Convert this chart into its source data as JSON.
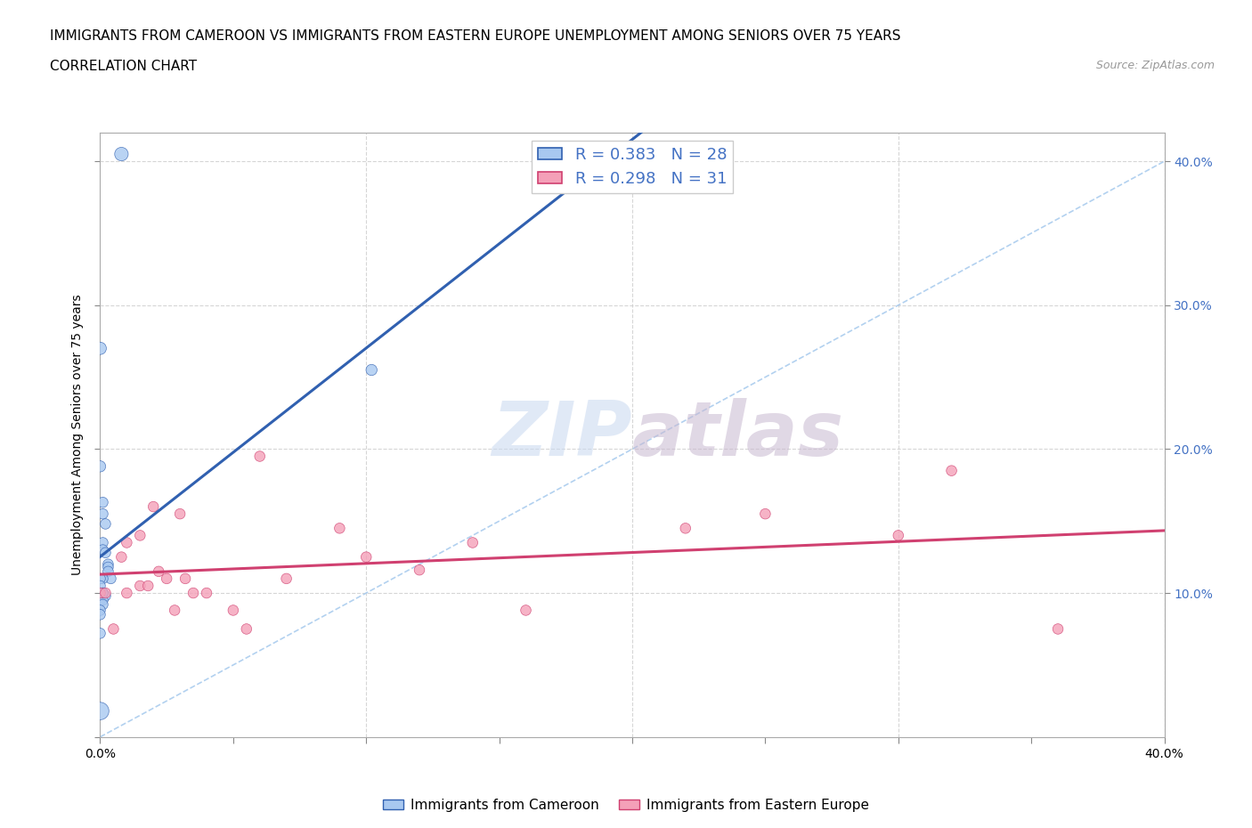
{
  "title_line1": "IMMIGRANTS FROM CAMEROON VS IMMIGRANTS FROM EASTERN EUROPE UNEMPLOYMENT AMONG SENIORS OVER 75 YEARS",
  "title_line2": "CORRELATION CHART",
  "source_text": "Source: ZipAtlas.com",
  "watermark": "ZIPatlas",
  "ylabel": "Unemployment Among Seniors over 75 years",
  "xlim": [
    0.0,
    0.4
  ],
  "ylim": [
    0.0,
    0.42
  ],
  "series": [
    {
      "label": "Immigrants from Cameroon",
      "color": "#a8c8f0",
      "line_color": "#3060b0",
      "R": 0.383,
      "N": 28,
      "x": [
        0.008,
        0.0,
        0.0,
        0.001,
        0.001,
        0.002,
        0.001,
        0.001,
        0.002,
        0.003,
        0.003,
        0.003,
        0.004,
        0.001,
        0.0,
        0.0,
        0.001,
        0.001,
        0.002,
        0.0,
        0.001,
        0.001,
        0.0,
        0.0,
        0.0,
        0.102,
        0.001,
        0.0
      ],
      "y": [
        0.405,
        0.27,
        0.188,
        0.163,
        0.155,
        0.148,
        0.135,
        0.13,
        0.128,
        0.12,
        0.118,
        0.115,
        0.11,
        0.11,
        0.11,
        0.105,
        0.1,
        0.1,
        0.098,
        0.095,
        0.095,
        0.092,
        0.088,
        0.085,
        0.072,
        0.255,
        0.1,
        0.018
      ],
      "sizes": [
        120,
        100,
        80,
        70,
        70,
        70,
        70,
        70,
        70,
        70,
        70,
        70,
        70,
        70,
        70,
        70,
        70,
        70,
        70,
        70,
        70,
        70,
        70,
        70,
        70,
        80,
        70,
        200
      ]
    },
    {
      "label": "Immigrants from Eastern Europe",
      "color": "#f4a0b8",
      "line_color": "#d04070",
      "R": 0.298,
      "N": 31,
      "x": [
        0.0,
        0.002,
        0.005,
        0.008,
        0.01,
        0.01,
        0.015,
        0.015,
        0.018,
        0.02,
        0.022,
        0.025,
        0.028,
        0.03,
        0.032,
        0.035,
        0.04,
        0.05,
        0.055,
        0.06,
        0.07,
        0.09,
        0.1,
        0.12,
        0.14,
        0.16,
        0.22,
        0.25,
        0.3,
        0.32,
        0.36
      ],
      "y": [
        0.1,
        0.1,
        0.075,
        0.125,
        0.135,
        0.1,
        0.14,
        0.105,
        0.105,
        0.16,
        0.115,
        0.11,
        0.088,
        0.155,
        0.11,
        0.1,
        0.1,
        0.088,
        0.075,
        0.195,
        0.11,
        0.145,
        0.125,
        0.116,
        0.135,
        0.088,
        0.145,
        0.155,
        0.14,
        0.185,
        0.075
      ],
      "sizes": [
        70,
        70,
        70,
        70,
        70,
        70,
        70,
        70,
        70,
        70,
        70,
        70,
        70,
        70,
        70,
        70,
        70,
        70,
        70,
        70,
        70,
        70,
        70,
        70,
        70,
        70,
        70,
        70,
        70,
        70,
        70
      ]
    }
  ],
  "background_color": "#ffffff",
  "grid_color": "#cccccc",
  "diag_color": "#aaccee",
  "title_fontsize": 11,
  "axis_label_fontsize": 10,
  "tick_fontsize": 10,
  "legend_fontsize": 13,
  "R_color": "#4472c4"
}
